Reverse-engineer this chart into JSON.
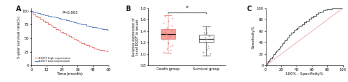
{
  "panel_A": {
    "xlabel": "Time(month)",
    "ylabel": "5-year survival rate(%)",
    "xlim": [
      0,
      60
    ],
    "ylim": [
      0,
      105
    ],
    "xticks": [
      0,
      12,
      24,
      36,
      48,
      60
    ],
    "yticks": [
      0,
      25,
      50,
      75,
      100
    ],
    "pvalue": "P=0.003",
    "legend": [
      "EGOT high expression",
      "EGOT Low expression"
    ],
    "high_color": "#E8736A",
    "low_color": "#5B7DBF",
    "high_x": [
      0,
      1,
      3,
      5,
      7,
      9,
      11,
      13,
      15,
      17,
      19,
      21,
      23,
      25,
      27,
      29,
      31,
      33,
      35,
      37,
      39,
      41,
      43,
      45,
      47,
      49,
      51,
      53,
      55,
      57,
      59,
      60
    ],
    "high_y": [
      100,
      95,
      91,
      88,
      85,
      82,
      79,
      76,
      73,
      70,
      67,
      65,
      62,
      59,
      57,
      54,
      51,
      49,
      46,
      44,
      41,
      39,
      37,
      35,
      33,
      31,
      30,
      29,
      28,
      27,
      26,
      26
    ],
    "low_x": [
      0,
      1,
      3,
      5,
      7,
      9,
      11,
      13,
      15,
      17,
      19,
      21,
      23,
      25,
      27,
      29,
      31,
      33,
      35,
      37,
      39,
      41,
      43,
      45,
      47,
      49,
      51,
      53,
      55,
      57,
      59,
      60
    ],
    "low_y": [
      100,
      99,
      97,
      96,
      95,
      93,
      92,
      91,
      90,
      89,
      88,
      87,
      85,
      84,
      83,
      82,
      80,
      79,
      78,
      77,
      76,
      75,
      73,
      72,
      71,
      70,
      69,
      68,
      67,
      66,
      65,
      64
    ]
  },
  "panel_B": {
    "xlabel_left": "Death group",
    "xlabel_right": "Survival group",
    "ylabel": "Relative expression of\nlevel EGOT in serum",
    "ylim": [
      0.8,
      1.8
    ],
    "yticks": [
      0.8,
      1.0,
      1.2,
      1.4,
      1.6,
      1.8
    ],
    "death_box": {
      "q1": 1.26,
      "median": 1.35,
      "q3": 1.44,
      "whislo": 1.02,
      "whishi": 1.68
    },
    "survival_box": {
      "q1": 1.2,
      "median": 1.27,
      "q3": 1.34,
      "whislo": 0.97,
      "whishi": 1.48
    },
    "death_color": "#E8736A",
    "survival_color": "#555555",
    "death_scatter_y": [
      1.04,
      1.07,
      1.1,
      1.13,
      1.16,
      1.19,
      1.22,
      1.25,
      1.27,
      1.29,
      1.31,
      1.33,
      1.35,
      1.37,
      1.39,
      1.41,
      1.43,
      1.46,
      1.5,
      1.54,
      1.58,
      1.63,
      1.67
    ],
    "survival_scatter_y": [
      0.98,
      1.01,
      1.04,
      1.08,
      1.11,
      1.14,
      1.17,
      1.2,
      1.22,
      1.25,
      1.27,
      1.29,
      1.31,
      1.33,
      1.35,
      1.37,
      1.39,
      1.42,
      1.45,
      1.48
    ],
    "sig_text": "*"
  },
  "panel_C": {
    "xlabel": "100% - Specificity%",
    "ylabel": "Sensitivity%",
    "xlim": [
      0,
      100
    ],
    "ylim": [
      0,
      100
    ],
    "xticks": [
      0,
      20,
      40,
      60,
      80,
      100
    ],
    "yticks": [
      0,
      20,
      40,
      60,
      80,
      100
    ],
    "roc_x": [
      0,
      2,
      3,
      5,
      6,
      8,
      9,
      10,
      12,
      13,
      14,
      16,
      17,
      18,
      19,
      21,
      22,
      24,
      25,
      27,
      28,
      30,
      31,
      33,
      35,
      37,
      39,
      41,
      43,
      45,
      47,
      50,
      53,
      56,
      59,
      62,
      65,
      68,
      71,
      74,
      77,
      80,
      83,
      86,
      89,
      92,
      95,
      98,
      100
    ],
    "roc_y": [
      0,
      5,
      8,
      10,
      12,
      15,
      18,
      20,
      22,
      24,
      26,
      28,
      30,
      32,
      34,
      37,
      39,
      42,
      44,
      47,
      49,
      52,
      54,
      57,
      59,
      62,
      64,
      66,
      68,
      70,
      72,
      75,
      78,
      81,
      84,
      87,
      90,
      92,
      94,
      96,
      97,
      98,
      99,
      100,
      100,
      100,
      100,
      100,
      100
    ],
    "diag_color": "#E8A0A0",
    "roc_color": "#555555"
  }
}
